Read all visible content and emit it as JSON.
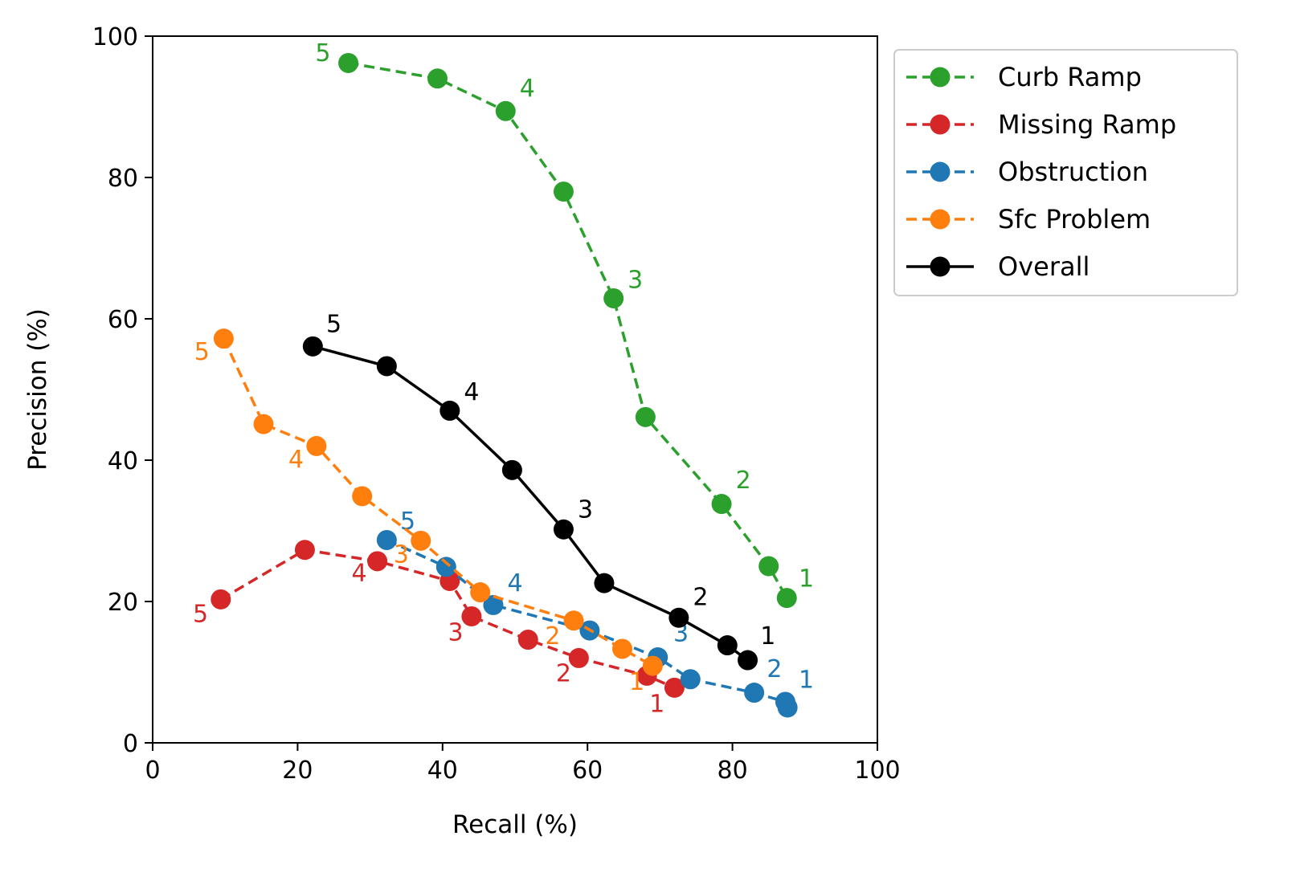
{
  "chart_data": {
    "type": "line",
    "title": "",
    "xlabel": "Recall (%)",
    "ylabel": "Precision (%)",
    "xlim": [
      0,
      100
    ],
    "ylim": [
      0,
      100
    ],
    "x_ticks": [
      "0",
      "20",
      "40",
      "60",
      "80",
      "100"
    ],
    "y_ticks": [
      "0",
      "20",
      "40",
      "60",
      "80",
      "100"
    ],
    "grid": false,
    "legend_position": "outside-top-right",
    "series": [
      {
        "name": "Curb Ramp",
        "color": "#2ca02c",
        "line_style": "dashed",
        "points": [
          [
            27.0,
            96.2
          ],
          [
            39.3,
            94.0
          ],
          [
            48.7,
            89.4
          ],
          [
            56.7,
            78.0
          ],
          [
            63.6,
            62.9
          ],
          [
            68.0,
            46.1
          ],
          [
            78.5,
            33.8
          ],
          [
            85.0,
            25.0
          ],
          [
            87.5,
            20.5
          ]
        ],
        "labels": [
          {
            "text": "5",
            "x": 23.5,
            "y": 96.5
          },
          {
            "text": "4",
            "x": 51.7,
            "y": 91.5
          },
          {
            "text": "3",
            "x": 66.6,
            "y": 64.4
          },
          {
            "text": "2",
            "x": 81.5,
            "y": 36.0
          },
          {
            "text": "1",
            "x": 90.2,
            "y": 22.1
          }
        ]
      },
      {
        "name": "Missing Ramp",
        "color": "#d62728",
        "line_style": "dashed",
        "points": [
          [
            9.4,
            20.3
          ],
          [
            21.0,
            27.3
          ],
          [
            31.0,
            25.7
          ],
          [
            41.0,
            22.9
          ],
          [
            44.0,
            17.9
          ],
          [
            51.8,
            14.6
          ],
          [
            58.8,
            12.0
          ],
          [
            68.2,
            9.5
          ],
          [
            72.0,
            7.8
          ]
        ],
        "labels": [
          {
            "text": "5",
            "x": 6.6,
            "y": 17.1
          },
          {
            "text": "4",
            "x": 28.5,
            "y": 22.9
          },
          {
            "text": "3",
            "x": 41.8,
            "y": 14.5
          },
          {
            "text": "2",
            "x": 56.7,
            "y": 8.7
          },
          {
            "text": "1",
            "x": 69.6,
            "y": 4.4
          }
        ]
      },
      {
        "name": "Obstruction",
        "color": "#1f77b4",
        "line_style": "dashed",
        "points": [
          [
            32.3,
            28.7
          ],
          [
            40.5,
            24.9
          ],
          [
            47.0,
            19.5
          ],
          [
            60.3,
            15.9
          ],
          [
            69.7,
            12.1
          ],
          [
            74.2,
            9.0
          ],
          [
            83.0,
            7.1
          ],
          [
            87.3,
            5.8
          ],
          [
            87.6,
            5.0
          ]
        ],
        "labels": [
          {
            "text": "5",
            "x": 35.2,
            "y": 30.2
          },
          {
            "text": "4",
            "x": 50.0,
            "y": 21.5
          },
          {
            "text": "3",
            "x": 72.9,
            "y": 14.4
          },
          {
            "text": "2",
            "x": 85.8,
            "y": 9.3
          },
          {
            "text": "1",
            "x": 90.2,
            "y": 7.8
          }
        ]
      },
      {
        "name": "Sfc Problem",
        "color": "#ff7f0e",
        "line_style": "dashed",
        "points": [
          [
            9.8,
            57.2
          ],
          [
            15.3,
            45.1
          ],
          [
            22.6,
            42.0
          ],
          [
            28.9,
            34.9
          ],
          [
            37.0,
            28.6
          ],
          [
            45.2,
            21.3
          ],
          [
            58.1,
            17.3
          ],
          [
            64.8,
            13.3
          ],
          [
            69.0,
            10.9
          ]
        ],
        "labels": [
          {
            "text": "5",
            "x": 6.8,
            "y": 54.2
          },
          {
            "text": "4",
            "x": 19.8,
            "y": 39.0
          },
          {
            "text": "3",
            "x": 34.3,
            "y": 25.5
          },
          {
            "text": "2",
            "x": 55.2,
            "y": 14.0
          },
          {
            "text": "1",
            "x": 66.8,
            "y": 7.5
          }
        ]
      },
      {
        "name": "Overall",
        "color": "#000000",
        "line_style": "solid",
        "points": [
          [
            22.1,
            56.1
          ],
          [
            32.3,
            53.3
          ],
          [
            41.0,
            47.0
          ],
          [
            49.6,
            38.6
          ],
          [
            56.7,
            30.2
          ],
          [
            62.3,
            22.6
          ],
          [
            72.6,
            17.7
          ],
          [
            79.3,
            13.8
          ],
          [
            82.1,
            11.7
          ]
        ],
        "labels": [
          {
            "text": "5",
            "x": 25.0,
            "y": 58.1
          },
          {
            "text": "4",
            "x": 44.0,
            "y": 48.5
          },
          {
            "text": "3",
            "x": 59.7,
            "y": 31.9
          },
          {
            "text": "2",
            "x": 75.6,
            "y": 19.5
          },
          {
            "text": "1",
            "x": 84.9,
            "y": 14.0
          }
        ]
      }
    ]
  }
}
